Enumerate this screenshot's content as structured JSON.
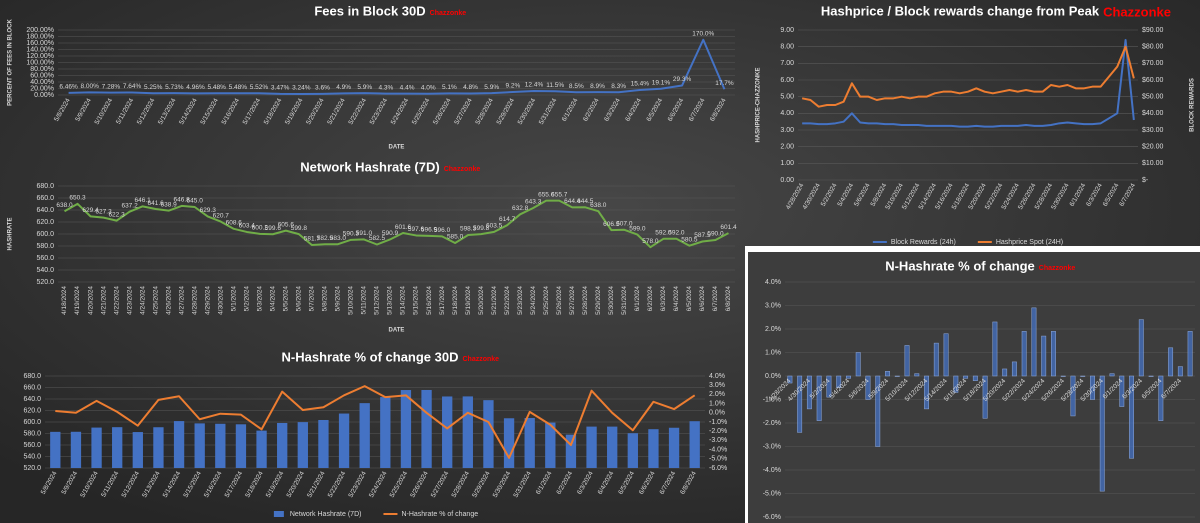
{
  "chart_data": [
    {
      "type": "line",
      "title": "Fees in Block 30D",
      "annotation": "Chazzonke",
      "y_label": "PERCENT OF FEES IN BLOCK",
      "x_label": "DATE",
      "categories": [
        "5/8/2024",
        "5/9/2024",
        "5/10/2024",
        "5/11/2024",
        "5/12/2024",
        "5/13/2024",
        "5/14/2024",
        "5/15/2024",
        "5/16/2024",
        "5/17/2024",
        "5/18/2024",
        "5/19/2024",
        "5/20/2024",
        "5/21/2024",
        "5/22/2024",
        "5/23/2024",
        "5/24/2024",
        "5/25/2024",
        "5/26/2024",
        "5/27/2024",
        "5/28/2024",
        "5/29/2024",
        "5/30/2024",
        "5/31/2024",
        "6/1/2024",
        "6/2/2024",
        "6/3/2024",
        "6/4/2024",
        "6/5/2024",
        "6/6/2024",
        "6/7/2024",
        "6/8/2024"
      ],
      "values": [
        6.46,
        8.0,
        7.28,
        7.64,
        5.25,
        5.73,
        4.96,
        5.48,
        5.48,
        5.52,
        3.47,
        3.24,
        3.6,
        4.9,
        5.9,
        4.3,
        4.4,
        4.0,
        5.1,
        4.8,
        5.9,
        9.2,
        12.4,
        11.5,
        8.5,
        8.9,
        8.3,
        15.4,
        19.1,
        29.3,
        170.0,
        17.7
      ],
      "value_labels": [
        "6.46%",
        "8.00%",
        "7.28%",
        "7.64%",
        "5.25%",
        "5.73%",
        "4.96%",
        "5.48%",
        "5.48%",
        "5.52%",
        "3.47%",
        "3.24%",
        "3.6%",
        "4.9%",
        "5.9%",
        "4.3%",
        "4.4%",
        "4.0%",
        "5.1%",
        "4.8%",
        "5.9%",
        "9.2%",
        "12.4%",
        "11.5%",
        "8.5%",
        "8.9%",
        "8.3%",
        "15.4%",
        "19.1%",
        "29.3%",
        "170.0%",
        "17.7%"
      ],
      "color": "#4472c4",
      "ylim": [
        0,
        200
      ],
      "yticks": [
        {
          "value": 0,
          "label": "0.00%"
        },
        {
          "value": 20,
          "label": "20.00%"
        },
        {
          "value": 40,
          "label": "40.00%"
        },
        {
          "value": 60,
          "label": "60.00%"
        },
        {
          "value": 80,
          "label": "80.00%"
        },
        {
          "value": 100,
          "label": "100.00%"
        },
        {
          "value": 120,
          "label": "120.00%"
        },
        {
          "value": 140,
          "label": "140.00%"
        },
        {
          "value": 160,
          "label": "160.00%"
        },
        {
          "value": 180,
          "label": "180.00%"
        },
        {
          "value": 200,
          "label": "200.00%"
        }
      ],
      "grid": true
    },
    {
      "type": "line",
      "title": "Network Hashrate (7D)",
      "annotation": "Chazzonke",
      "y_label": "HASHRATE",
      "x_label": "DATE",
      "categories": [
        "4/18/2024",
        "4/19/2024",
        "4/20/2024",
        "4/21/2024",
        "4/22/2024",
        "4/23/2024",
        "4/24/2024",
        "4/25/2024",
        "4/26/2024",
        "4/27/2024",
        "4/28/2024",
        "4/29/2024",
        "4/30/2024",
        "5/1/2024",
        "5/2/2024",
        "5/3/2024",
        "5/4/2024",
        "5/5/2024",
        "5/6/2024",
        "5/7/2024",
        "5/8/2024",
        "5/9/2024",
        "5/10/2024",
        "5/11/2024",
        "5/12/2024",
        "5/13/2024",
        "5/14/2024",
        "5/15/2024",
        "5/16/2024",
        "5/17/2024",
        "5/18/2024",
        "5/19/2024",
        "5/20/2024",
        "5/21/2024",
        "5/22/2024",
        "5/23/2024",
        "5/24/2024",
        "5/25/2024",
        "5/26/2024",
        "5/27/2024",
        "5/28/2024",
        "5/29/2024",
        "5/30/2024",
        "5/31/2024",
        "6/1/2024",
        "6/2/2024",
        "6/3/2024",
        "6/4/2024",
        "6/5/2024",
        "6/6/2024",
        "6/7/2024",
        "6/8/2024"
      ],
      "values": [
        638.0,
        650.3,
        629.4,
        627.3,
        622.3,
        637.2,
        646.1,
        641.6,
        638.9,
        646.8,
        645.0,
        629.3,
        620.7,
        608.6,
        603.4,
        600.2,
        599.6,
        605.6,
        599.8,
        581.7,
        582.9,
        583.0,
        590.3,
        591.0,
        582.5,
        590.9,
        601.6,
        597.6,
        596.9,
        596.0,
        585.0,
        598.3,
        599.8,
        603.5,
        614.7,
        632.8,
        643.3,
        655.6,
        655.7,
        644.4,
        644.5,
        638.0,
        606.5,
        607.0,
        599.0,
        578.0,
        592.0,
        592.0,
        580.5,
        587.5,
        590.0,
        601.4
      ],
      "value_labels": [
        "638.0",
        "650.3",
        "629.4",
        "627.3",
        "622.3",
        "637.2",
        "646.1",
        "641.6",
        "638.9",
        "646.8",
        "645.0",
        "629.3",
        "620.7",
        "608.6",
        "603.4",
        "600.2",
        "599.6",
        "605.6",
        "599.8",
        "581.7",
        "582.9",
        "583.0",
        "590.3",
        "591.0",
        "582.5",
        "590.9",
        "601.6",
        "597.6",
        "596.9",
        "596.0",
        "585.0",
        "598.3",
        "599.8",
        "603.5",
        "614.7",
        "632.8",
        "643.3",
        "655.6",
        "655.7",
        "644.4",
        "644.5",
        "638.0",
        "606.5",
        "607.0",
        "599.0",
        "578.0",
        "592.0",
        "592.0",
        "580.5",
        "587.5",
        "590.0",
        "601.4"
      ],
      "color": "#70ad47",
      "ylim": [
        520,
        680
      ],
      "yticks": [
        {
          "value": 520,
          "label": "520.0"
        },
        {
          "value": 540,
          "label": "540.0"
        },
        {
          "value": 560,
          "label": "560.0"
        },
        {
          "value": 580,
          "label": "580.0"
        },
        {
          "value": 600,
          "label": "600.0"
        },
        {
          "value": 620,
          "label": "620.0"
        },
        {
          "value": 640,
          "label": "640.0"
        },
        {
          "value": 660,
          "label": "660.0"
        },
        {
          "value": 680,
          "label": "680.0"
        }
      ],
      "grid": true
    },
    {
      "type": "combo",
      "title": "N-Hashrate % of change 30D",
      "annotation": "Chazzonke",
      "categories": [
        "5/8/2024",
        "5/9/2024",
        "5/10/2024",
        "5/11/2024",
        "5/12/2024",
        "5/13/2024",
        "5/14/2024",
        "5/15/2024",
        "5/16/2024",
        "5/17/2024",
        "5/18/2024",
        "5/19/2024",
        "5/20/2024",
        "5/21/2024",
        "5/22/2024",
        "5/23/2024",
        "5/24/2024",
        "5/25/2024",
        "5/26/2024",
        "5/27/2024",
        "5/28/2024",
        "5/29/2024",
        "5/30/2024",
        "5/31/2024",
        "6/1/2024",
        "6/2/2024",
        "6/3/2024",
        "6/4/2024",
        "6/5/2024",
        "6/6/2024",
        "6/7/2024",
        "6/8/2024"
      ],
      "series": [
        {
          "name": "Network Hashrate (7D)",
          "type": "bar",
          "color": "#4472c4",
          "values": [
            582.9,
            583.0,
            590.3,
            591.0,
            582.5,
            590.9,
            601.6,
            597.6,
            596.9,
            596.0,
            585.0,
            598.3,
            599.8,
            603.5,
            614.7,
            632.8,
            643.3,
            655.6,
            655.7,
            644.4,
            644.5,
            638.0,
            606.5,
            607.0,
            599.0,
            578.0,
            592.0,
            592.0,
            580.5,
            587.5,
            590.0,
            601.4
          ]
        },
        {
          "name": "N-Hashrate % of change",
          "type": "line",
          "axis": "y2",
          "color": "#ed7d31",
          "values": [
            0.2,
            0.0,
            1.3,
            0.1,
            -1.4,
            1.4,
            1.8,
            -0.7,
            -0.1,
            -0.2,
            -1.8,
            2.3,
            0.3,
            0.6,
            1.9,
            2.9,
            1.7,
            1.9,
            0.0,
            -1.7,
            0.0,
            -1.0,
            -4.9,
            0.1,
            -1.3,
            -3.5,
            2.4,
            0.0,
            -1.9,
            1.2,
            0.4,
            1.9
          ]
        }
      ],
      "ylim": [
        520,
        680
      ],
      "yticks": [
        {
          "value": 520,
          "label": "520.0"
        },
        {
          "value": 540,
          "label": "540.0"
        },
        {
          "value": 560,
          "label": "560.0"
        },
        {
          "value": 580,
          "label": "580.0"
        },
        {
          "value": 600,
          "label": "600.0"
        },
        {
          "value": 620,
          "label": "620.0"
        },
        {
          "value": 640,
          "label": "640.0"
        },
        {
          "value": 660,
          "label": "660.0"
        },
        {
          "value": 680,
          "label": "680.0"
        }
      ],
      "y2lim": [
        -6,
        4
      ],
      "y2ticks": [
        {
          "value": -6,
          "label": "-6.0%"
        },
        {
          "value": -5,
          "label": "-5.0%"
        },
        {
          "value": -4,
          "label": "-4.0%"
        },
        {
          "value": -3,
          "label": "-3.0%"
        },
        {
          "value": -2,
          "label": "-2.0%"
        },
        {
          "value": -1,
          "label": "-1.0%"
        },
        {
          "value": 0,
          "label": "0.0%"
        },
        {
          "value": 1,
          "label": "1.0%"
        },
        {
          "value": 2,
          "label": "2.0%"
        },
        {
          "value": 3,
          "label": "3.0%"
        },
        {
          "value": 4,
          "label": "4.0%"
        }
      ],
      "grid": true,
      "legend": "bottom"
    },
    {
      "type": "line",
      "title": "Hashprice / Block rewards change from Peak",
      "annotation": "Chazzonke",
      "y_label": "HASHPRICE-CHAZZONKE",
      "y2_label": "BLOCK REWARDS",
      "categories": [
        "4/28/2024",
        null,
        "4/30/2024",
        null,
        "5/2/2024",
        null,
        "5/4/2024",
        null,
        "5/6/2024",
        null,
        "5/8/2024",
        null,
        "5/10/2024",
        null,
        "5/12/2024",
        null,
        "5/14/2024",
        null,
        "5/16/2024",
        null,
        "5/18/2024",
        null,
        "5/20/2024",
        null,
        "5/22/2024",
        null,
        "5/24/2024",
        null,
        "5/26/2024",
        null,
        "5/28/2024",
        null,
        "5/30/2024",
        null,
        "6/1/2024",
        null,
        "6/3/2024",
        null,
        "6/5/2024",
        null,
        "6/7/2024"
      ],
      "series": [
        {
          "name": "Block Rewards (24h)",
          "type": "line",
          "color": "#4472c4",
          "values": [
            3.4,
            3.4,
            3.35,
            3.35,
            3.4,
            3.5,
            4.0,
            3.45,
            3.4,
            3.4,
            3.35,
            3.35,
            3.3,
            3.3,
            3.3,
            3.25,
            3.25,
            3.25,
            3.25,
            3.2,
            3.2,
            3.25,
            3.2,
            3.2,
            3.25,
            3.25,
            3.25,
            3.3,
            3.25,
            3.25,
            3.3,
            3.4,
            3.45,
            3.4,
            3.35,
            3.35,
            3.4,
            3.7,
            4.0,
            8.4,
            3.6
          ]
        },
        {
          "name": "Hashprice Spot (24H)",
          "type": "line",
          "axis": "y2",
          "color": "#ed7d31",
          "values": [
            49,
            48,
            44,
            45,
            45,
            47,
            58,
            50,
            50,
            48,
            49,
            49,
            50,
            49,
            50,
            50,
            52,
            53,
            53,
            52,
            53,
            55,
            53,
            52,
            53,
            54,
            53,
            54,
            53,
            53,
            57,
            56,
            57,
            55,
            55,
            56,
            56,
            62,
            68,
            80,
            61
          ]
        }
      ],
      "ylim": [
        0,
        9
      ],
      "yticks": [
        {
          "value": 0,
          "label": "0.00"
        },
        {
          "value": 1,
          "label": "1.00"
        },
        {
          "value": 2,
          "label": "2.00"
        },
        {
          "value": 3,
          "label": "3.00"
        },
        {
          "value": 4,
          "label": "4.00"
        },
        {
          "value": 5,
          "label": "5.00"
        },
        {
          "value": 6,
          "label": "6.00"
        },
        {
          "value": 7,
          "label": "7.00"
        },
        {
          "value": 8,
          "label": "8.00"
        },
        {
          "value": 9,
          "label": "9.00"
        }
      ],
      "y2lim": [
        0,
        90
      ],
      "y2ticks": [
        {
          "value": 0,
          "label": "$-"
        },
        {
          "value": 10,
          "label": "$10.00"
        },
        {
          "value": 20,
          "label": "$20.00"
        },
        {
          "value": 30,
          "label": "$30.00"
        },
        {
          "value": 40,
          "label": "$40.00"
        },
        {
          "value": 50,
          "label": "$50.00"
        },
        {
          "value": 60,
          "label": "$60.00"
        },
        {
          "value": 70,
          "label": "$70.00"
        },
        {
          "value": 80,
          "label": "$80.00"
        },
        {
          "value": 90,
          "label": "$90.00"
        }
      ],
      "grid": true,
      "legend": "bottom"
    },
    {
      "type": "bar",
      "title": "N-Hashrate % of change",
      "annotation": "Chazzonke",
      "categories": [
        "4/28/2024",
        null,
        "4/30/2024",
        null,
        "5/2/2024",
        null,
        "5/4/2024",
        null,
        "5/6/2024",
        null,
        "5/8/2024",
        null,
        "5/10/2024",
        null,
        "5/12/2024",
        null,
        "5/14/2024",
        null,
        "5/16/2024",
        null,
        "5/18/2024",
        null,
        "5/20/2024",
        null,
        "5/22/2024",
        null,
        "5/24/2024",
        null,
        "5/26/2024",
        null,
        "5/28/2024",
        null,
        "5/30/2024",
        null,
        "6/1/2024",
        null,
        "6/3/2024",
        null,
        "6/5/2024",
        null,
        "6/7/2024",
        null
      ],
      "values": [
        -0.3,
        -2.4,
        -1.4,
        -1.9,
        -0.9,
        -0.5,
        -0.1,
        1.0,
        -1.0,
        -3.0,
        0.2,
        0.0,
        1.3,
        0.1,
        -1.4,
        1.4,
        1.8,
        -0.7,
        -0.1,
        -0.2,
        -1.8,
        2.3,
        0.3,
        0.6,
        1.9,
        2.9,
        1.7,
        1.9,
        0.0,
        -1.7,
        0.0,
        -1.0,
        -4.9,
        0.1,
        -1.3,
        -3.5,
        2.4,
        0.0,
        -1.9,
        1.2,
        0.4,
        1.9
      ],
      "color": "#4472c4",
      "ylim": [
        -6,
        4
      ],
      "yticks": [
        {
          "value": -6,
          "label": "-6.0%"
        },
        {
          "value": -5,
          "label": "-5.0%"
        },
        {
          "value": -4,
          "label": "-4.0%"
        },
        {
          "value": -3,
          "label": "-3.0%"
        },
        {
          "value": -2,
          "label": "-2.0%"
        },
        {
          "value": -1,
          "label": "-1.0%"
        },
        {
          "value": 0,
          "label": "0.0%"
        },
        {
          "value": 1,
          "label": "1.0%"
        },
        {
          "value": 2,
          "label": "2.0%"
        },
        {
          "value": 3,
          "label": "3.0%"
        },
        {
          "value": 4,
          "label": "4.0%"
        }
      ],
      "grid": true
    }
  ]
}
